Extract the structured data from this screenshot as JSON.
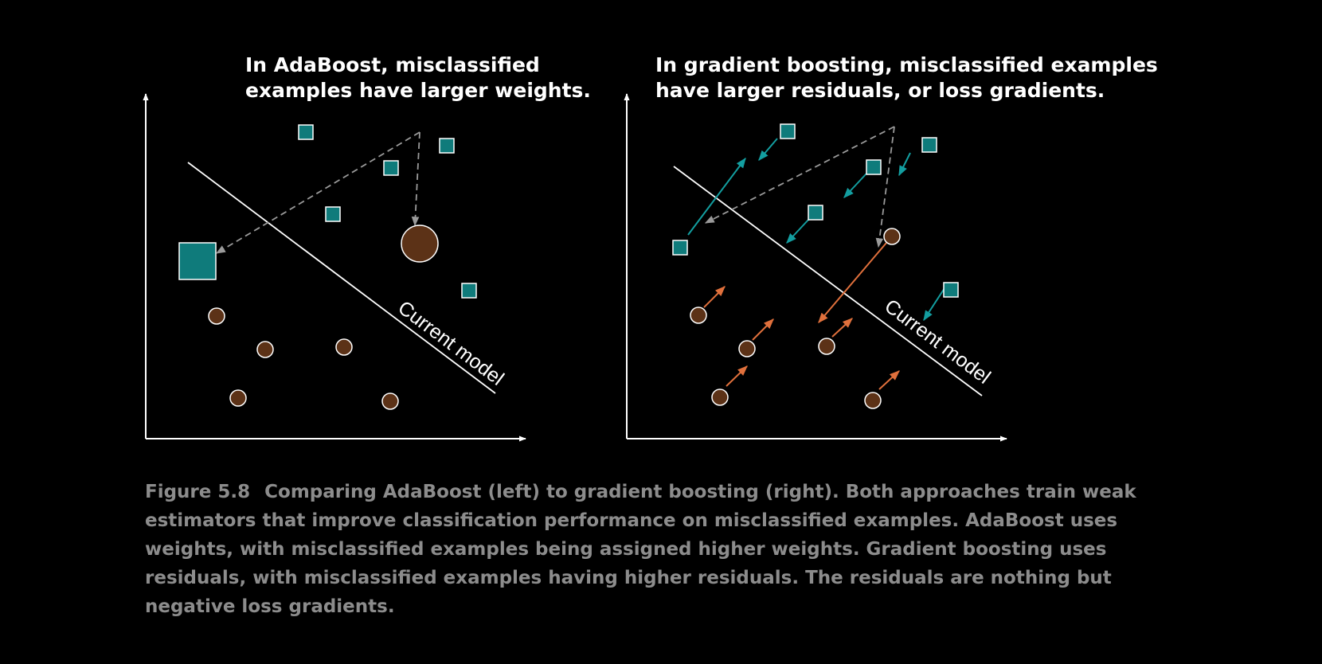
{
  "colors": {
    "background": "#000000",
    "axis": "#ffffff",
    "teal_square": "#0f7b7b",
    "brown_circle": "#5c3217",
    "teal_arrow": "#139ea0",
    "orange_arrow": "#e0703c",
    "dashed_arrow": "#9a9a9a",
    "caption_text": "#8c8c8c"
  },
  "left_panel": {
    "title_line1": "In AdaBoost, misclassified",
    "title_line2": "examples have larger weights.",
    "model_label": "Current model"
  },
  "right_panel": {
    "title_line1": "In gradient boosting, misclassified examples",
    "title_line2": "have larger residuals, or loss gradients.",
    "model_label": "Current model"
  },
  "caption": {
    "figure_label": "Figure 5.8",
    "text": "Comparing AdaBoost (left) to gradient boosting (right). Both approaches train weak estimators that improve classification performance on misclassified examples. AdaBoost uses weights, with misclassified examples being assigned higher weights. Gradient boosting uses residuals, with misclassified examples having higher residuals. The residuals are nothing but negative loss gradients."
  }
}
